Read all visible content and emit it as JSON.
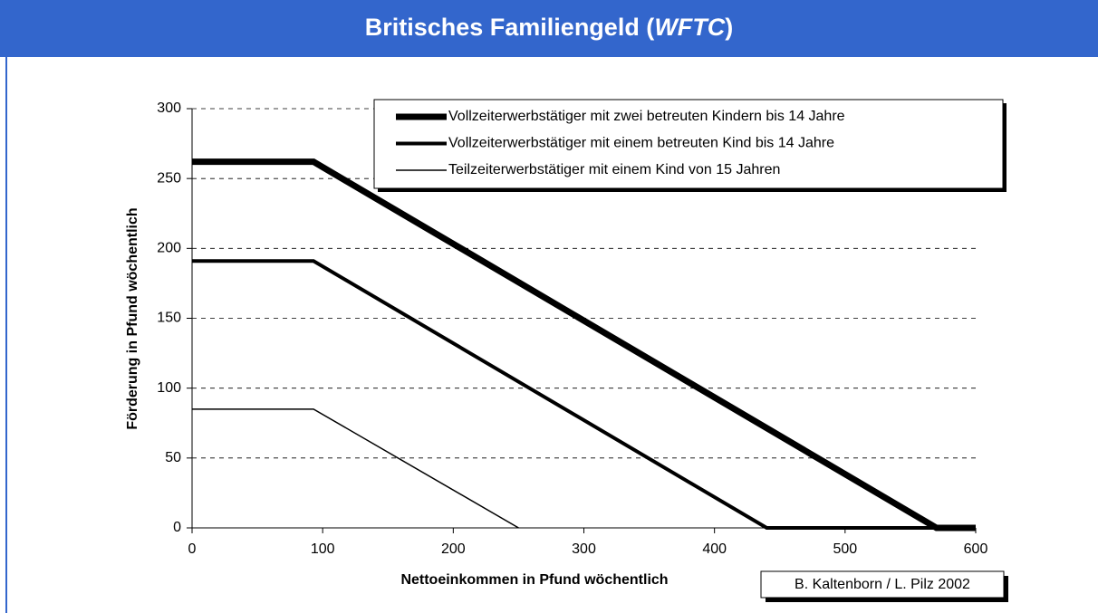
{
  "chart_data": {
    "type": "line",
    "title_parts": [
      "Britisches Familiengeld (",
      "WFTC",
      ")"
    ],
    "x_label": "Nettoeinkommen in Pfund wöchentlich",
    "y_label": "Förderung in Pfund wöchentlich",
    "annotation": "B. Kaltenborn / L. Pilz 2002",
    "series": [
      {
        "name": "Vollzeiterwerbstätiger mit zwei betreuten Kindern bis 14 Jahre",
        "color": "#000000",
        "line_width": 7,
        "x": [
          0,
          93,
          570,
          600
        ],
        "values": [
          262,
          262,
          0,
          0
        ]
      },
      {
        "name": "Vollzeiterwerbstätiger mit einem betreuten Kind bis 14 Jahre",
        "color": "#000000",
        "line_width": 4,
        "x": [
          0,
          93,
          440,
          600
        ],
        "values": [
          191,
          191,
          0,
          0
        ]
      },
      {
        "name": "Teilzeiterwerbstätiger mit einem Kind von 15 Jahren",
        "color": "#000000",
        "line_width": 1.5,
        "x": [
          0,
          93,
          250
        ],
        "values": [
          85,
          85,
          0
        ]
      }
    ],
    "xlim": [
      0,
      600
    ],
    "xticks": [
      0,
      100,
      200,
      300,
      400,
      500,
      600
    ],
    "ylim": [
      0,
      300
    ],
    "yticks": [
      0,
      50,
      100,
      150,
      200,
      250,
      300
    ],
    "grid": true,
    "legend": "top-right"
  }
}
